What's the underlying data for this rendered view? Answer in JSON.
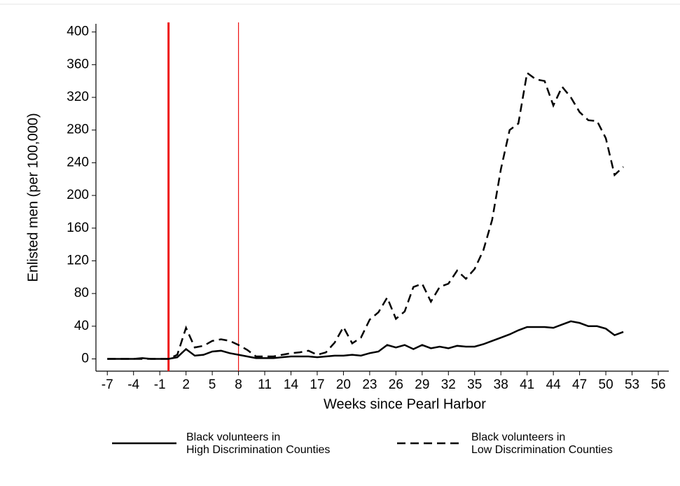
{
  "chart_data": {
    "type": "line",
    "x_label": "Weeks since Pearl Harbor",
    "y_label": "Enlisted men (per 100,000)",
    "x": [
      -7,
      -6,
      -5,
      -4,
      -3,
      -2,
      -1,
      0,
      1,
      2,
      3,
      4,
      5,
      6,
      7,
      8,
      9,
      10,
      11,
      12,
      13,
      14,
      15,
      16,
      17,
      18,
      19,
      20,
      21,
      22,
      23,
      24,
      25,
      26,
      27,
      28,
      29,
      30,
      31,
      32,
      33,
      34,
      35,
      36,
      37,
      38,
      39,
      40,
      41,
      42,
      43,
      44,
      45,
      46,
      47,
      48,
      49,
      50,
      51,
      52
    ],
    "series": [
      {
        "name": "Black volunteers in\nHigh Discrimination Counties",
        "color": "#000000",
        "dash": "solid",
        "values": [
          0,
          0,
          0,
          0,
          1,
          0,
          0,
          0,
          2,
          12,
          4,
          5,
          9,
          10,
          7,
          5,
          3,
          1,
          1,
          1,
          2,
          3,
          3,
          3,
          2,
          3,
          4,
          4,
          5,
          4,
          7,
          9,
          17,
          14,
          17,
          12,
          17,
          13,
          15,
          13,
          16,
          15,
          15,
          18,
          22,
          26,
          30,
          35,
          39,
          39,
          39,
          38,
          42,
          46,
          44,
          40,
          40,
          37,
          29,
          33
        ]
      },
      {
        "name": "Black volunteers in\nLow Discrimination Counties",
        "color": "#000000",
        "dash": "dashed",
        "values": [
          0,
          0,
          0,
          0,
          0,
          0,
          0,
          0,
          5,
          38,
          14,
          16,
          22,
          24,
          22,
          17,
          11,
          3,
          3,
          3,
          5,
          7,
          8,
          10,
          5,
          8,
          20,
          39,
          19,
          26,
          48,
          57,
          75,
          49,
          58,
          88,
          92,
          70,
          88,
          92,
          108,
          98,
          110,
          133,
          170,
          232,
          280,
          288,
          350,
          342,
          340,
          310,
          333,
          320,
          302,
          292,
          291,
          270,
          225,
          235
        ]
      }
    ],
    "vlines": [
      {
        "x": 0,
        "color": "#ee1111"
      },
      {
        "x": 8,
        "color": "#ee1111"
      }
    ],
    "xlim": [
      -8.3,
      57.2
    ],
    "ylim": [
      -15,
      410
    ],
    "xticks": [
      -7,
      -4,
      -1,
      2,
      5,
      8,
      11,
      14,
      17,
      20,
      23,
      26,
      29,
      32,
      35,
      38,
      41,
      44,
      47,
      50,
      53,
      56
    ],
    "yticks": [
      0,
      40,
      80,
      120,
      160,
      200,
      240,
      280,
      320,
      360,
      400
    ],
    "legend": "bottom"
  }
}
